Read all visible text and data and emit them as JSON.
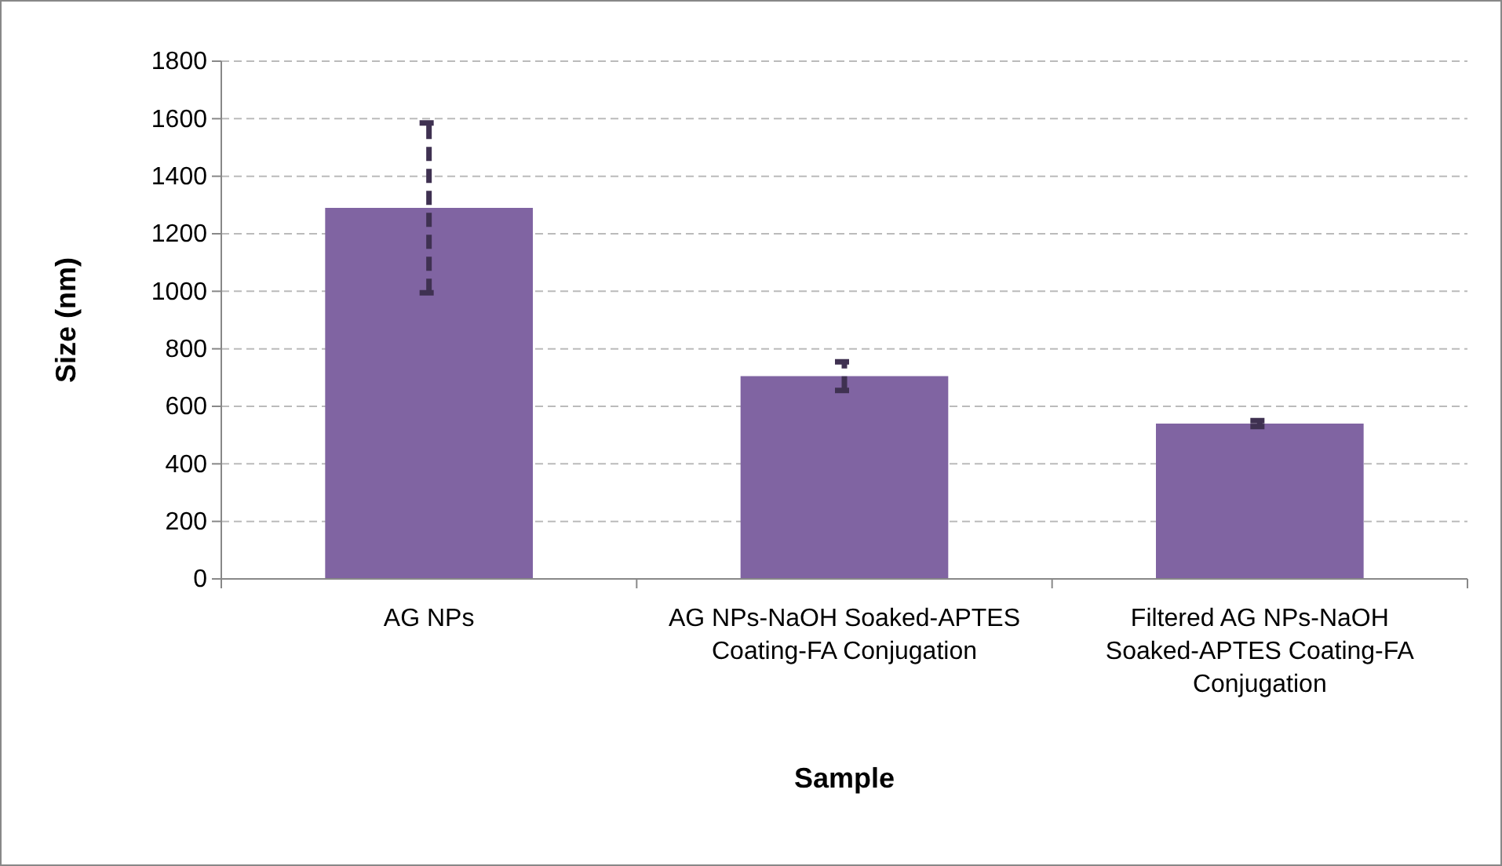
{
  "chart_data": {
    "type": "bar",
    "xlabel": "Sample",
    "ylabel": "Size (nm)",
    "categories": [
      "AG NPs",
      "AG NPs-NaOH Soaked-APTES Coating-FA Conjugation",
      "Filtered AG NPs-NaOH Soaked-APTES Coating-FA Conjugation"
    ],
    "values": [
      1290,
      705,
      540
    ],
    "errors": [
      295,
      50,
      10
    ],
    "color": "#8064a2",
    "ylim": [
      0,
      1800
    ],
    "yticks": [
      0,
      200,
      400,
      600,
      800,
      1000,
      1200,
      1400,
      1600,
      1800
    ],
    "grid": "y"
  }
}
